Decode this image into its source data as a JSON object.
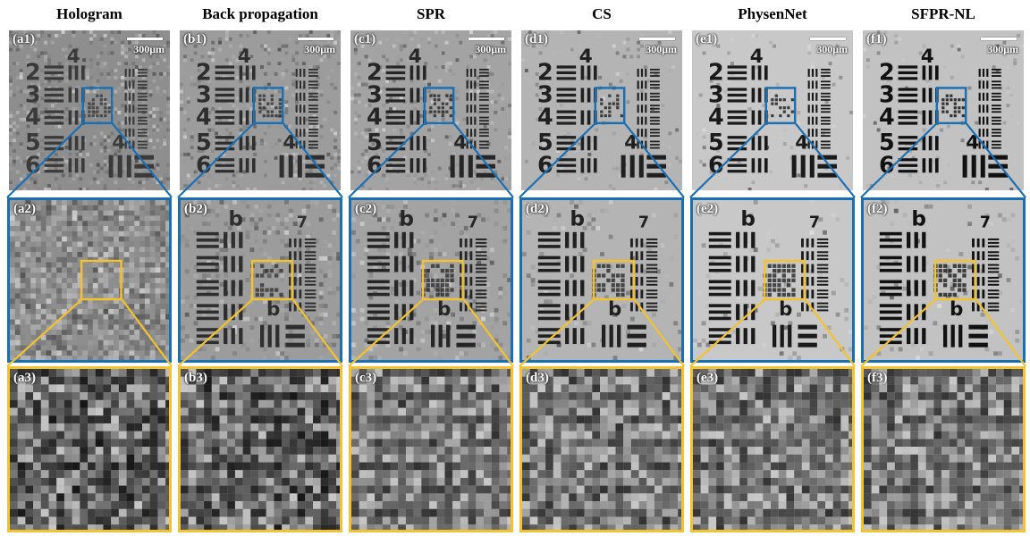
{
  "columns": [
    {
      "title": "Hologram",
      "labels": [
        "(a1)",
        "(a2)",
        "(a3)"
      ]
    },
    {
      "title": "Back propagation",
      "labels": [
        "(b1)",
        "(b2)",
        "(b3)"
      ]
    },
    {
      "title": "SPR",
      "labels": [
        "(c1)",
        "(c2)",
        "(c3)"
      ]
    },
    {
      "title": "CS",
      "labels": [
        "(d1)",
        "(d2)",
        "(d3)"
      ]
    },
    {
      "title": "PhysenNet",
      "labels": [
        "(e1)",
        "(e2)",
        "(e3)"
      ]
    },
    {
      "title": "SFPR-NL",
      "labels": [
        "(f1)",
        "(f2)",
        "(f3)"
      ]
    }
  ],
  "scale_bar_label": "300μm",
  "colors": {
    "zoom_box_row1": "#1a6fb3",
    "zoom_box_row2": "#f2c230",
    "background": "#ffffff"
  }
}
